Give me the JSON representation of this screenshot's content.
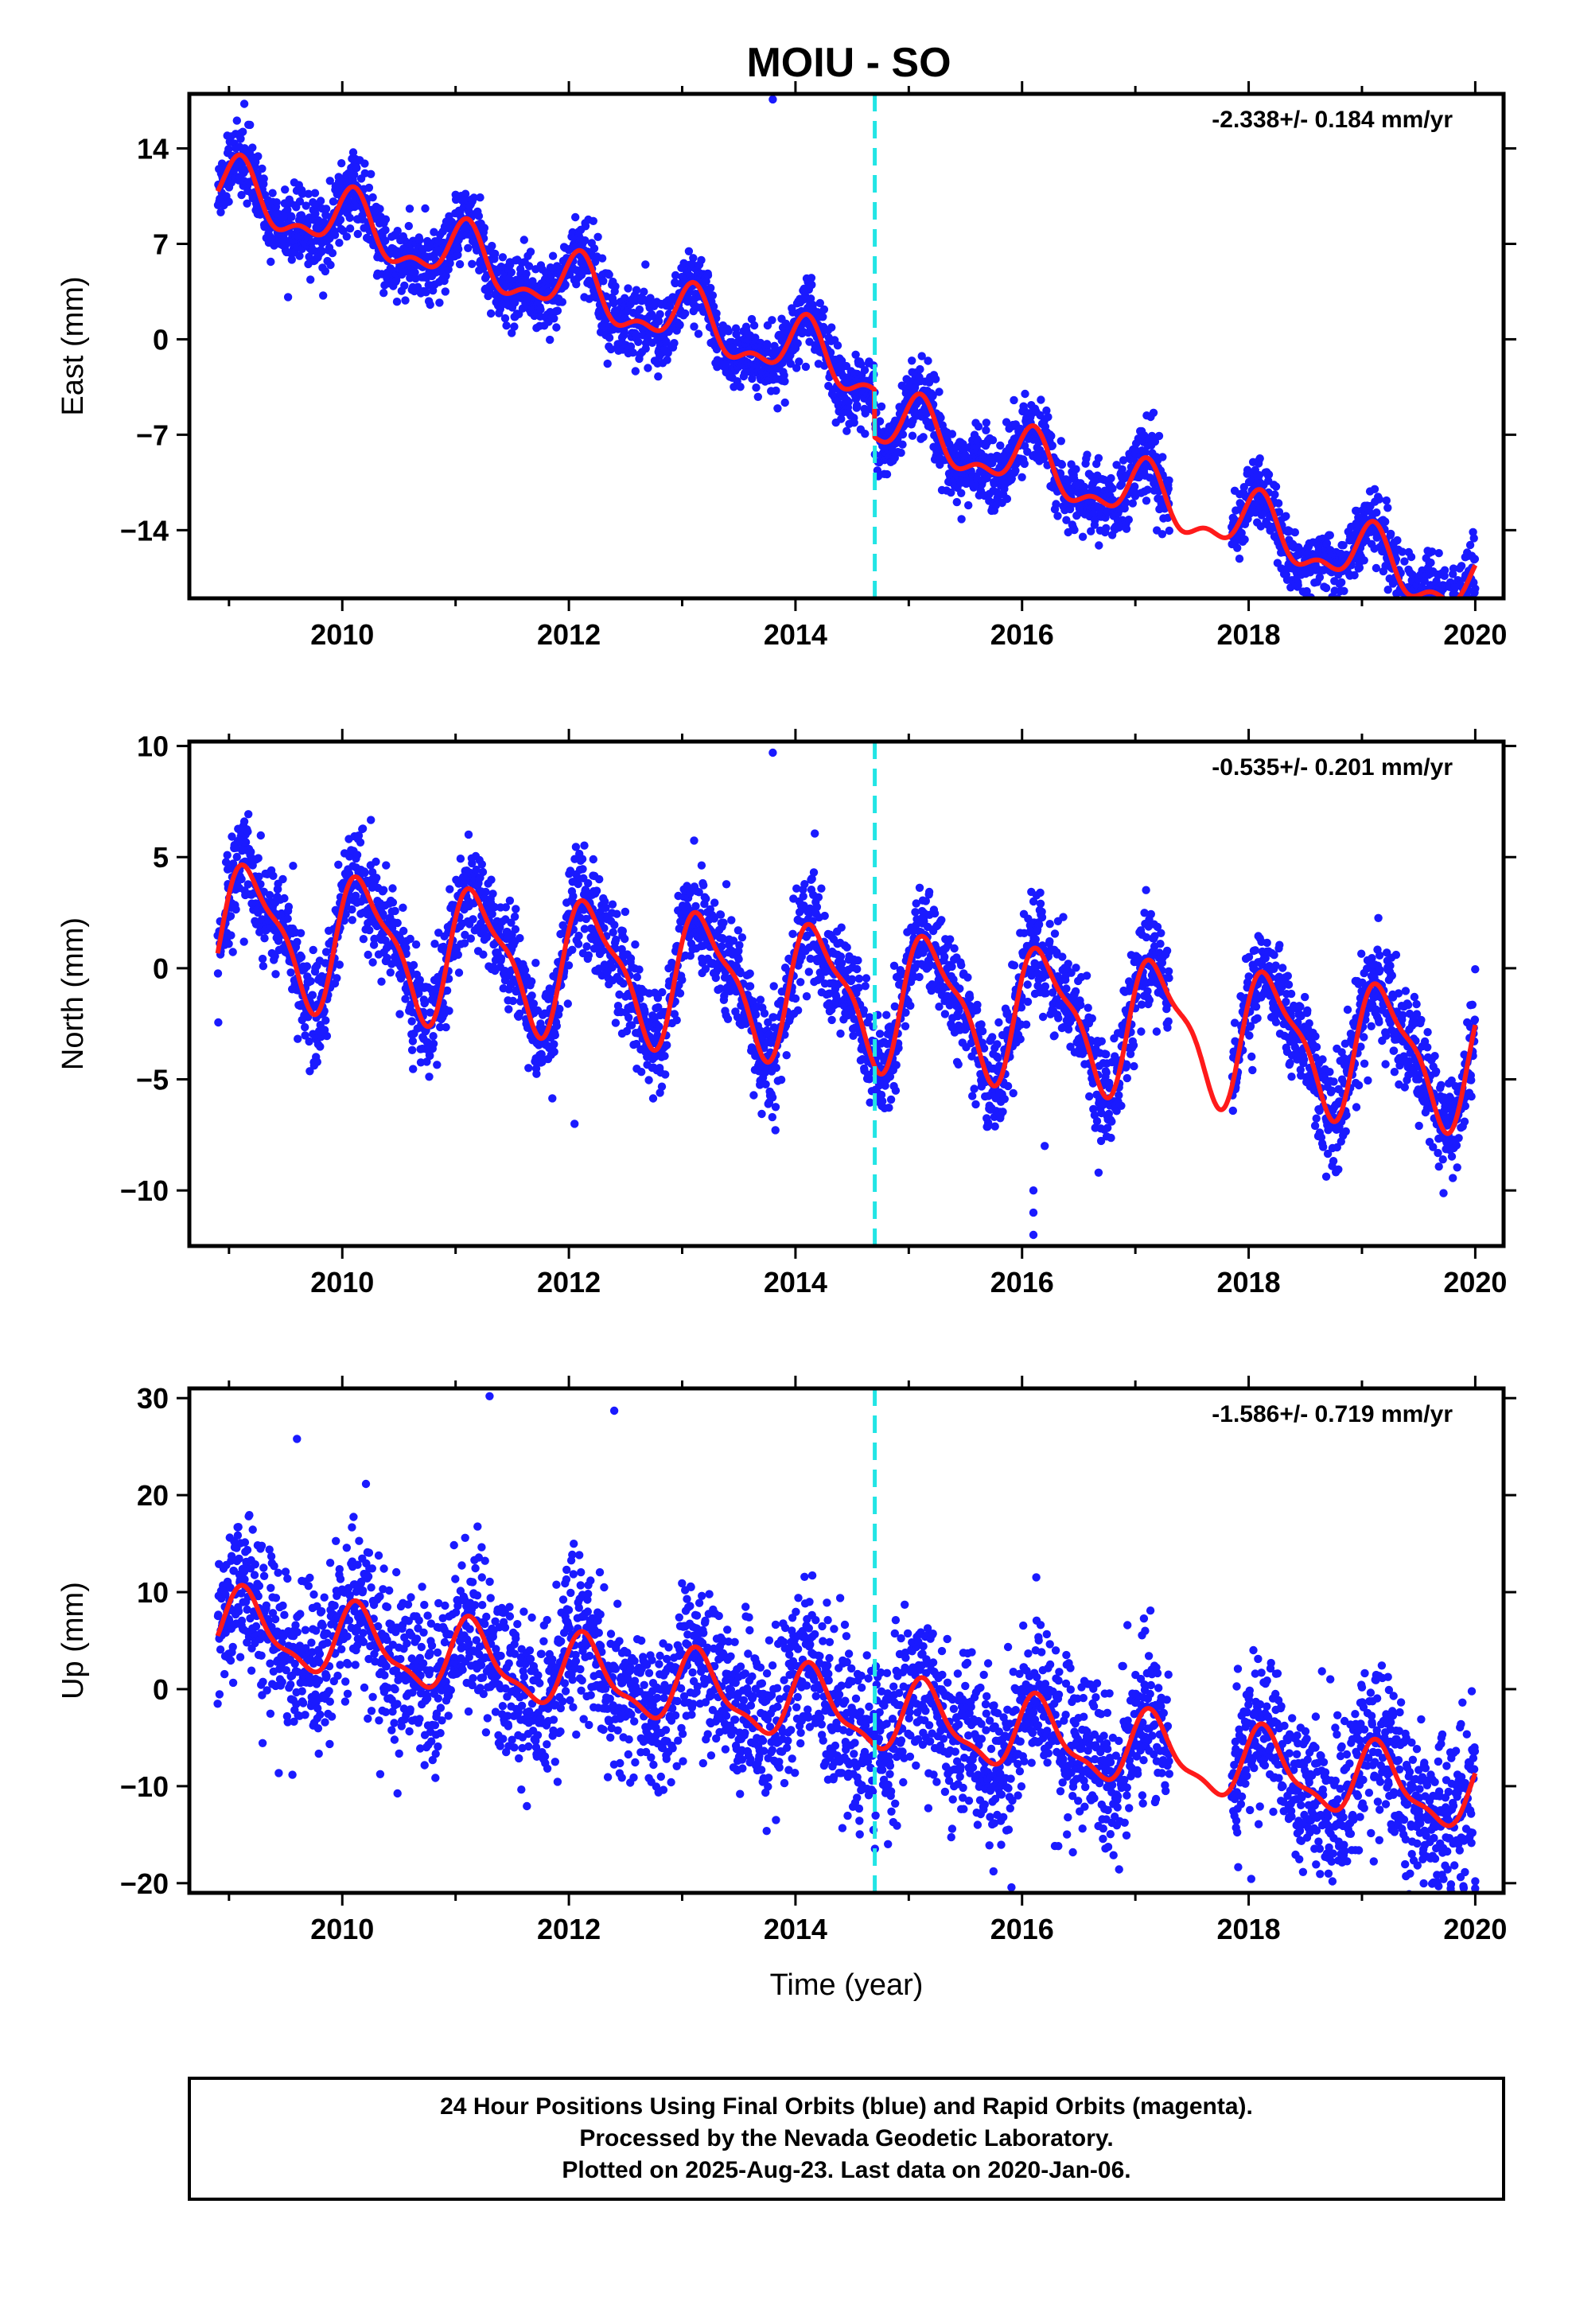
{
  "chart_data": {
    "title": "MOIU - SO",
    "type": "scatter",
    "x_label": "Time (year)",
    "x_range": [
      2008.65,
      2020.25
    ],
    "x_ticks": [
      2010,
      2012,
      2014,
      2016,
      2018,
      2020
    ],
    "x_ticks_printed": [
      "2010",
      "2012",
      "2014",
      "2016",
      "2018",
      "2020"
    ],
    "break_marker_x": 2014.7,
    "break_marker_color": "#22e5e5",
    "point_color": "#1a1aff",
    "model_color": "#ff1a1a",
    "data_start": 2008.9,
    "data_end": 2020.0,
    "data_gaps": [
      [
        2017.3,
        2017.85
      ]
    ],
    "panels": [
      {
        "id": "east",
        "ylabel": "East (mm)",
        "ylim": [
          -19,
          18
        ],
        "y_ticks": [
          14,
          7,
          0,
          -7,
          -14
        ],
        "y_ticks_printed": [
          "14",
          "7",
          "0",
          "−7",
          "−14"
        ],
        "rate_label": "-2.338+/- 0.184 mm/yr",
        "model": {
          "intercept": 11.0,
          "t0": 2008.9,
          "annual_amp": 2.0,
          "annual_phase": 1.0,
          "semiannual_amp": 1.0,
          "semiannual_phase": 0.2,
          "offset_year": 2014.7,
          "offset_value": -3.5,
          "slope": -2.338
        },
        "noise_sd": 1.3,
        "outliers": [
          {
            "x": 2013.8,
            "y": 17.6
          },
          {
            "x": 2019.7,
            "y": -18.5
          }
        ]
      },
      {
        "id": "north",
        "ylabel": "North (mm)",
        "ylim": [
          -12.5,
          10.2
        ],
        "y_ticks": [
          10,
          5,
          0,
          -5,
          -10
        ],
        "y_ticks_printed": [
          "10",
          "5",
          "0",
          "−5",
          "−10"
        ],
        "rate_label": "-0.535+/- 0.201 mm/yr",
        "model": {
          "intercept": 1.8,
          "t0": 2008.9,
          "annual_amp": 2.8,
          "annual_phase": 0.3,
          "semiannual_amp": 0.9,
          "semiannual_phase": 1.0,
          "offset_year": 2014.7,
          "offset_value": 0.0,
          "slope": -0.535
        },
        "noise_sd": 1.2,
        "outliers": [
          {
            "x": 2013.8,
            "y": 9.7
          },
          {
            "x": 2016.1,
            "y": -12.0
          },
          {
            "x": 2016.1,
            "y": -11.0
          },
          {
            "x": 2016.1,
            "y": -10.0
          },
          {
            "x": 2016.2,
            "y": -8.0
          },
          {
            "x": 2012.05,
            "y": -7.0
          }
        ]
      },
      {
        "id": "up",
        "ylabel": "Up (mm)",
        "ylim": [
          -21,
          31
        ],
        "y_ticks": [
          30,
          20,
          10,
          0,
          -10,
          -20
        ],
        "y_ticks_printed": [
          "30",
          "20",
          "10",
          "0",
          "−10",
          "−20"
        ],
        "rate_label": "-1.586+/- 0.719 mm/yr",
        "model": {
          "intercept": 6.5,
          "t0": 2008.9,
          "annual_amp": 3.5,
          "annual_phase": 0.6,
          "semiannual_amp": 1.2,
          "semiannual_phase": 0.4,
          "offset_year": 2014.7,
          "offset_value": 0.0,
          "slope": -1.586
        },
        "noise_sd": 4.2,
        "outliers": [
          {
            "x": 2011.3,
            "y": 30.2
          },
          {
            "x": 2012.4,
            "y": 28.7
          },
          {
            "x": 2009.6,
            "y": 25.8
          },
          {
            "x": 2020.0,
            "y": -19.8
          }
        ]
      }
    ]
  },
  "footer": {
    "line1": "24 Hour Positions Using Final Orbits (blue) and Rapid Orbits (magenta).",
    "line2": "Processed by the Nevada Geodetic Laboratory.",
    "line3": "Plotted on 2025-Aug-23. Last data on 2020-Jan-06."
  }
}
